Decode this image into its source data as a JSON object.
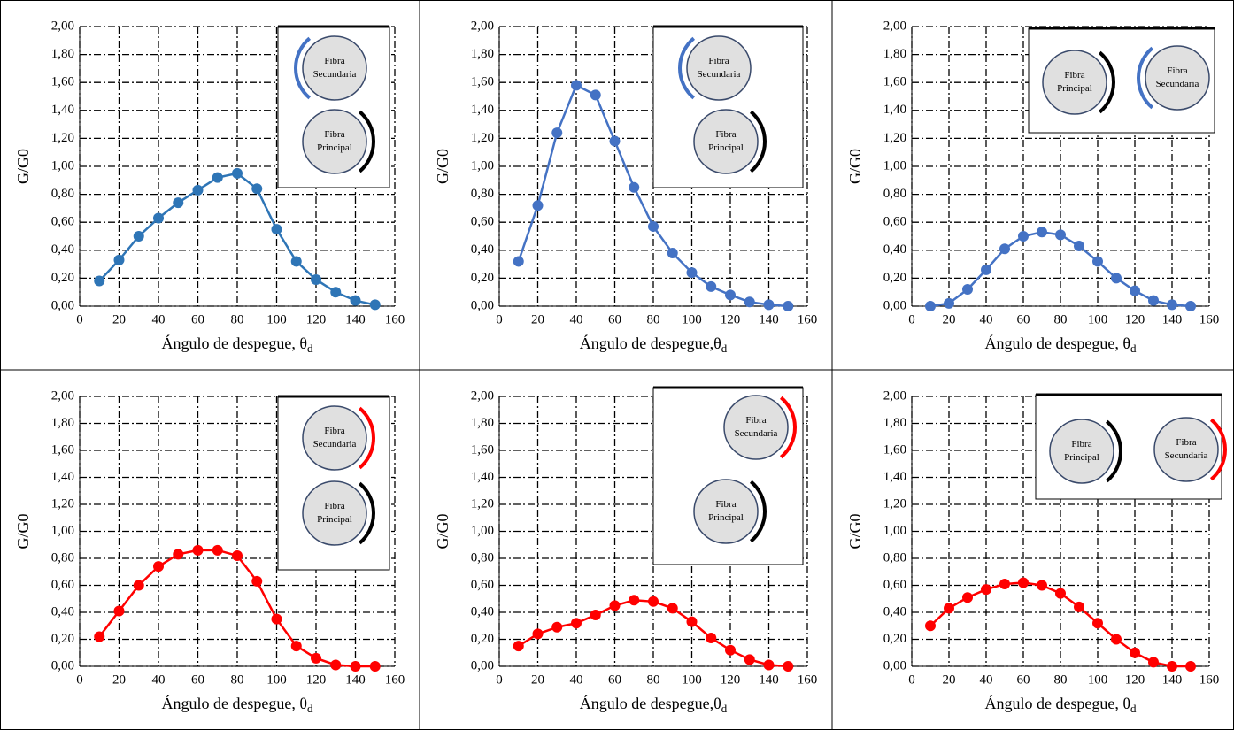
{
  "chart_data": [
    {
      "type": "line",
      "ylabel": "G/G0",
      "xlabel": "Ángulo de despegue, θ",
      "xlabel_sub": "d",
      "color": "#2e75b6",
      "x": [
        10,
        20,
        30,
        40,
        50,
        60,
        70,
        80,
        90,
        100,
        110,
        120,
        130,
        140,
        150
      ],
      "values": [
        0.18,
        0.33,
        0.5,
        0.63,
        0.74,
        0.83,
        0.92,
        0.95,
        0.84,
        0.55,
        0.32,
        0.19,
        0.1,
        0.04,
        0.01
      ],
      "xlim": [
        0,
        160
      ],
      "xticks": [
        0,
        20,
        40,
        60,
        80,
        100,
        120,
        140,
        160
      ],
      "ylim": [
        0,
        2
      ],
      "yticks": [
        {
          "value": 0,
          "label": "0,00"
        },
        {
          "value": 0.2,
          "label": "0,20"
        },
        {
          "value": 0.4,
          "label": "0,40"
        },
        {
          "value": 0.6,
          "label": "0,60"
        },
        {
          "value": 0.8,
          "label": "0,80"
        },
        {
          "value": 1,
          "label": "1,00"
        },
        {
          "value": 1.2,
          "label": "1,20"
        },
        {
          "value": 1.4,
          "label": "1,40"
        },
        {
          "value": 1.6,
          "label": "1,60"
        },
        {
          "value": 1.8,
          "label": "1,80"
        },
        {
          "value": 2,
          "label": "2,00"
        }
      ],
      "grid": true,
      "inset": [
        {
          "lines": [
            "Fibra",
            "Secundaria"
          ],
          "arc_color": "#4472c4"
        },
        {
          "lines": [
            "Fibra",
            "Principal"
          ],
          "arc_color": "#000000"
        }
      ]
    },
    {
      "type": "line",
      "ylabel": "G/G0",
      "xlabel": "Ángulo de despegue,θ",
      "xlabel_sub": "d",
      "color": "#4472c4",
      "x": [
        10,
        20,
        30,
        40,
        50,
        60,
        70,
        80,
        90,
        100,
        110,
        120,
        130,
        140,
        150
      ],
      "values": [
        0.32,
        0.72,
        1.24,
        1.58,
        1.51,
        1.18,
        0.85,
        0.57,
        0.38,
        0.24,
        0.14,
        0.08,
        0.03,
        0.01,
        0.0
      ],
      "xlim": [
        0,
        160
      ],
      "xticks": [
        0,
        20,
        40,
        60,
        80,
        100,
        120,
        140,
        160
      ],
      "ylim": [
        0,
        2
      ],
      "yticks": [
        {
          "value": 0,
          "label": "0,00"
        },
        {
          "value": 0.2,
          "label": "0,20"
        },
        {
          "value": 0.4,
          "label": "0,40"
        },
        {
          "value": 0.6,
          "label": "0,60"
        },
        {
          "value": 0.8,
          "label": "0,80"
        },
        {
          "value": 1,
          "label": "1,00"
        },
        {
          "value": 1.2,
          "label": "1,20"
        },
        {
          "value": 1.4,
          "label": "1,40"
        },
        {
          "value": 1.6,
          "label": "1,60"
        },
        {
          "value": 1.8,
          "label": "1,80"
        },
        {
          "value": 2,
          "label": "2,00"
        }
      ],
      "grid": true,
      "inset": [
        {
          "lines": [
            "Fibra",
            "Secundaria"
          ],
          "arc_color": "#4472c4"
        },
        {
          "lines": [
            "Fibra",
            "Principal"
          ],
          "arc_color": "#000000"
        }
      ]
    },
    {
      "type": "line",
      "ylabel": "G/G0",
      "xlabel": "Ángulo de despegue, θ",
      "xlabel_sub": "d",
      "color": "#4472c4",
      "x": [
        10,
        20,
        30,
        40,
        50,
        60,
        70,
        80,
        90,
        100,
        110,
        120,
        130,
        140,
        150
      ],
      "values": [
        0.0,
        0.02,
        0.12,
        0.26,
        0.41,
        0.5,
        0.53,
        0.51,
        0.43,
        0.32,
        0.2,
        0.11,
        0.04,
        0.01,
        0.0
      ],
      "xlim": [
        0,
        160
      ],
      "xticks": [
        0,
        20,
        40,
        60,
        80,
        100,
        120,
        140,
        160
      ],
      "ylim": [
        0,
        2
      ],
      "yticks": [
        {
          "value": 0,
          "label": "0,00"
        },
        {
          "value": 0.2,
          "label": "0,20"
        },
        {
          "value": 0.4,
          "label": "0,40"
        },
        {
          "value": 0.6,
          "label": "0,60"
        },
        {
          "value": 0.8,
          "label": "0,80"
        },
        {
          "value": 1,
          "label": "1,00"
        },
        {
          "value": 1.2,
          "label": "1,20"
        },
        {
          "value": 1.4,
          "label": "1,40"
        },
        {
          "value": 1.6,
          "label": "1,60"
        },
        {
          "value": 1.8,
          "label": "1,80"
        },
        {
          "value": 2,
          "label": "2,00"
        }
      ],
      "grid": true,
      "inset": [
        {
          "lines": [
            "Fibra",
            "Principal"
          ],
          "arc_color": "#000000"
        },
        {
          "lines": [
            "Fibra",
            "Secundaria"
          ],
          "arc_color": "#4472c4"
        }
      ]
    },
    {
      "type": "line",
      "ylabel": "G/G0",
      "xlabel": "Ángulo de despegue, θ",
      "xlabel_sub": "d",
      "color": "#ff0000",
      "x": [
        10,
        20,
        30,
        40,
        50,
        60,
        70,
        80,
        90,
        100,
        110,
        120,
        130,
        140,
        150
      ],
      "values": [
        0.22,
        0.41,
        0.6,
        0.74,
        0.83,
        0.86,
        0.86,
        0.82,
        0.63,
        0.35,
        0.15,
        0.06,
        0.01,
        0.0,
        0.0
      ],
      "xlim": [
        0,
        160
      ],
      "xticks": [
        0,
        20,
        40,
        60,
        80,
        100,
        120,
        140,
        160
      ],
      "ylim": [
        0,
        2
      ],
      "yticks": [
        {
          "value": 0,
          "label": "0,00"
        },
        {
          "value": 0.2,
          "label": "0,20"
        },
        {
          "value": 0.4,
          "label": "0,40"
        },
        {
          "value": 0.6,
          "label": "0,60"
        },
        {
          "value": 0.8,
          "label": "0,80"
        },
        {
          "value": 1,
          "label": "1,00"
        },
        {
          "value": 1.2,
          "label": "1,20"
        },
        {
          "value": 1.4,
          "label": "1,40"
        },
        {
          "value": 1.6,
          "label": "1,60"
        },
        {
          "value": 1.8,
          "label": "1,80"
        },
        {
          "value": 2,
          "label": "2,00"
        }
      ],
      "grid": true,
      "inset": [
        {
          "lines": [
            "Fibra",
            "Secundaria"
          ],
          "arc_color": "#ff0000"
        },
        {
          "lines": [
            "Fibra",
            "Principal"
          ],
          "arc_color": "#000000"
        }
      ]
    },
    {
      "type": "line",
      "ylabel": "G/G0",
      "xlabel": "Ángulo de despegue,θ",
      "xlabel_sub": "d",
      "color": "#ff0000",
      "x": [
        10,
        20,
        30,
        40,
        50,
        60,
        70,
        80,
        90,
        100,
        110,
        120,
        130,
        140,
        150
      ],
      "values": [
        0.15,
        0.24,
        0.29,
        0.32,
        0.38,
        0.45,
        0.49,
        0.48,
        0.43,
        0.33,
        0.21,
        0.12,
        0.05,
        0.01,
        0.0
      ],
      "xlim": [
        0,
        160
      ],
      "xticks": [
        0,
        20,
        40,
        60,
        80,
        100,
        120,
        140,
        160
      ],
      "ylim": [
        0,
        2
      ],
      "yticks": [
        {
          "value": 0,
          "label": "0,00"
        },
        {
          "value": 0.2,
          "label": "0,20"
        },
        {
          "value": 0.4,
          "label": "0,40"
        },
        {
          "value": 0.6,
          "label": "0,60"
        },
        {
          "value": 0.8,
          "label": "0,80"
        },
        {
          "value": 1,
          "label": "1,00"
        },
        {
          "value": 1.2,
          "label": "1,20"
        },
        {
          "value": 1.4,
          "label": "1,40"
        },
        {
          "value": 1.6,
          "label": "1,60"
        },
        {
          "value": 1.8,
          "label": "1,80"
        },
        {
          "value": 2,
          "label": "2,00"
        }
      ],
      "grid": true,
      "inset": [
        {
          "lines": [
            "Fibra",
            "Secundaria"
          ],
          "arc_color": "#ff0000"
        },
        {
          "lines": [
            "Fibra",
            "Principal"
          ],
          "arc_color": "#000000"
        }
      ]
    },
    {
      "type": "line",
      "ylabel": "G/G0",
      "xlabel": "Ángulo de despegue, θ",
      "xlabel_sub": "d",
      "color": "#ff0000",
      "x": [
        10,
        20,
        30,
        40,
        50,
        60,
        70,
        80,
        90,
        100,
        110,
        120,
        130,
        140,
        150
      ],
      "values": [
        0.3,
        0.43,
        0.51,
        0.57,
        0.61,
        0.62,
        0.6,
        0.54,
        0.44,
        0.32,
        0.2,
        0.1,
        0.03,
        0.0,
        0.0
      ],
      "xlim": [
        0,
        160
      ],
      "xticks": [
        0,
        20,
        40,
        60,
        80,
        100,
        120,
        140,
        160
      ],
      "ylim": [
        0,
        2
      ],
      "yticks": [
        {
          "value": 0,
          "label": "0,00"
        },
        {
          "value": 0.2,
          "label": "0,20"
        },
        {
          "value": 0.4,
          "label": "0,40"
        },
        {
          "value": 0.6,
          "label": "0,60"
        },
        {
          "value": 0.8,
          "label": "0,80"
        },
        {
          "value": 1,
          "label": "1,00"
        },
        {
          "value": 1.2,
          "label": "1,20"
        },
        {
          "value": 1.4,
          "label": "1,40"
        },
        {
          "value": 1.6,
          "label": "1,60"
        },
        {
          "value": 1.8,
          "label": "1,80"
        },
        {
          "value": 2,
          "label": "2,00"
        }
      ],
      "grid": true,
      "inset": [
        {
          "lines": [
            "Fibra",
            "Principal"
          ],
          "arc_color": "#000000"
        },
        {
          "lines": [
            "Fibra",
            "Secundaria"
          ],
          "arc_color": "#ff0000"
        }
      ]
    }
  ]
}
